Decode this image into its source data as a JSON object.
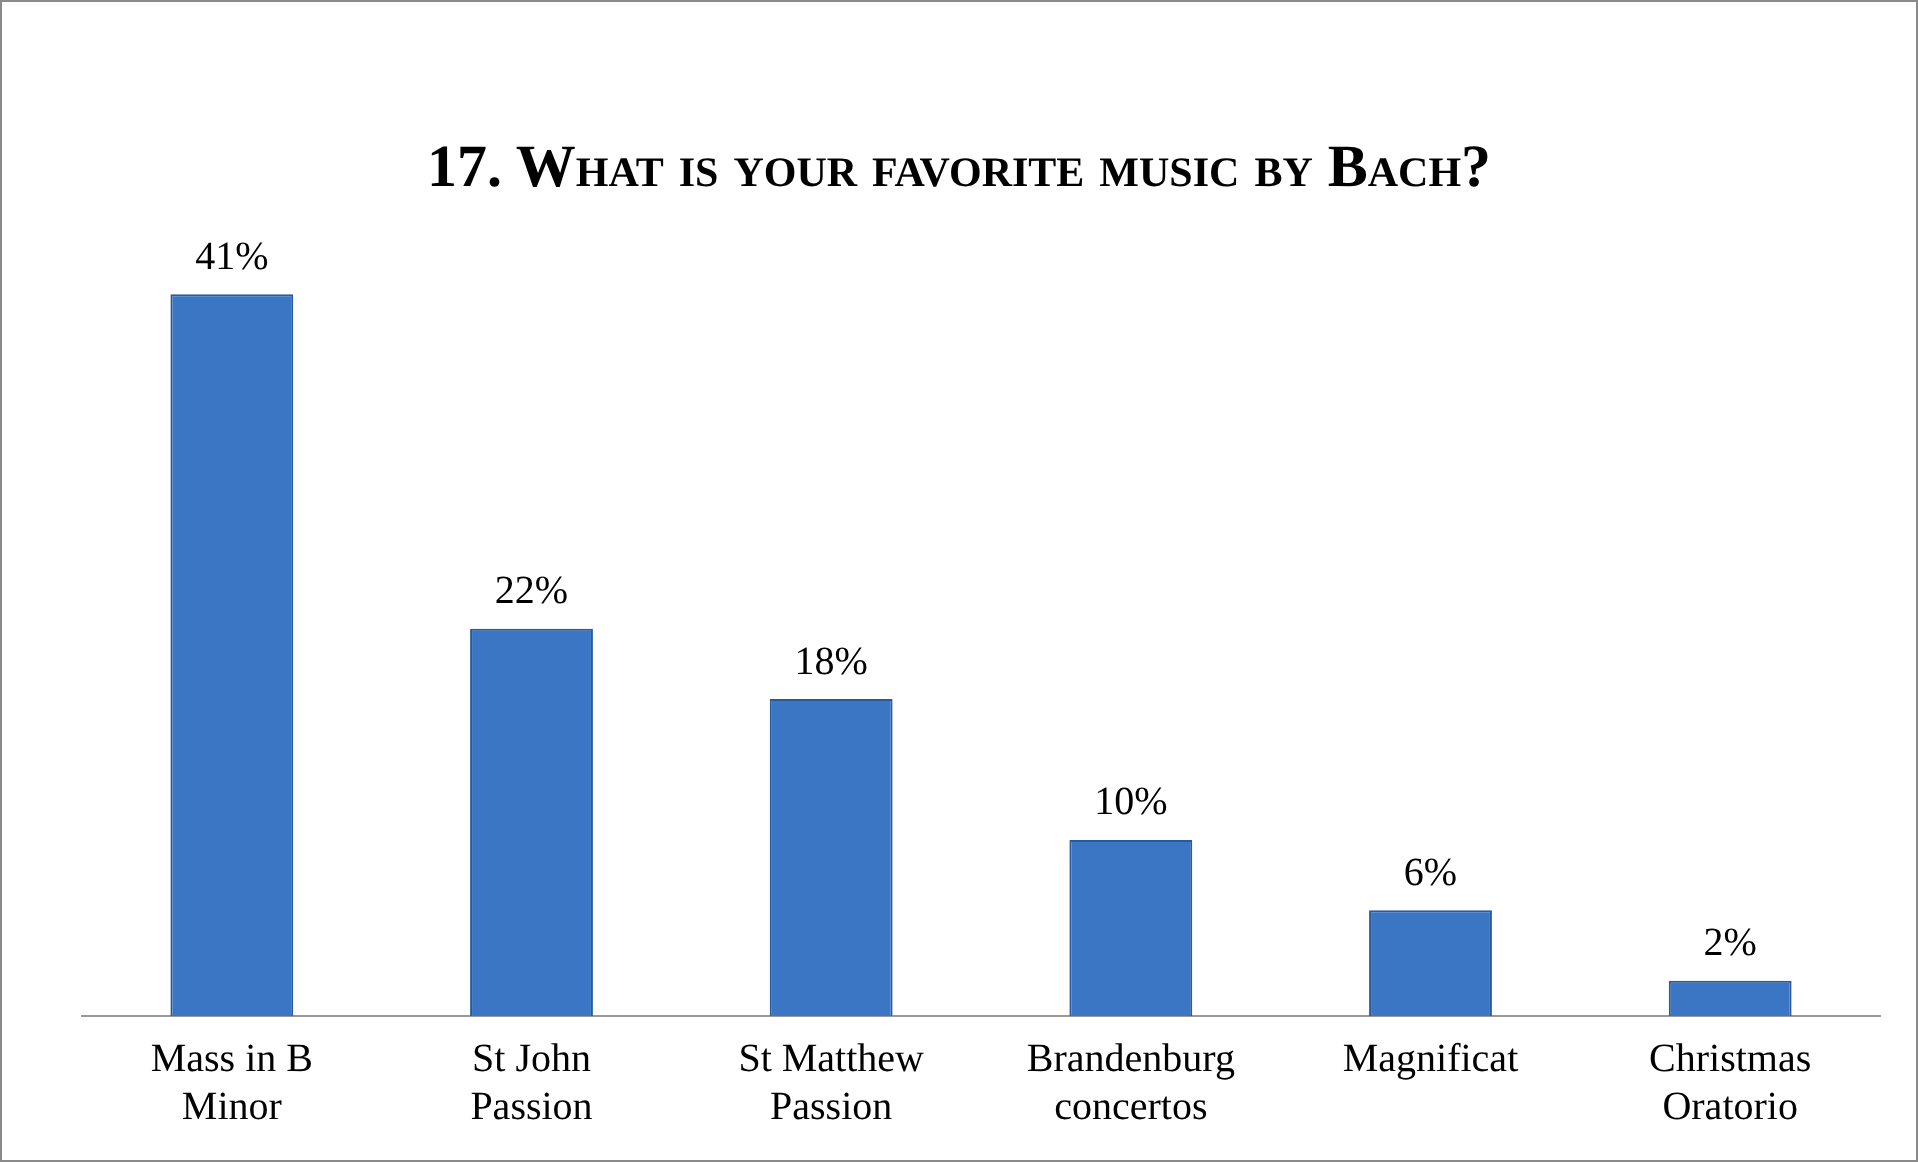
{
  "chart_data": {
    "type": "bar",
    "title": "17. What is your favorite music by Bach?",
    "categories": [
      "Mass in B Minor",
      "St John Passion",
      "St Matthew Passion",
      "Brandenburg concertos",
      "Magnificat",
      "Christmas Oratorio"
    ],
    "values": [
      41,
      22,
      18,
      10,
      6,
      2
    ],
    "value_labels": [
      "41%",
      "22%",
      "18%",
      "10%",
      "6%",
      "2%"
    ],
    "color": "#3a76c4",
    "grid": false,
    "legend": false
  }
}
